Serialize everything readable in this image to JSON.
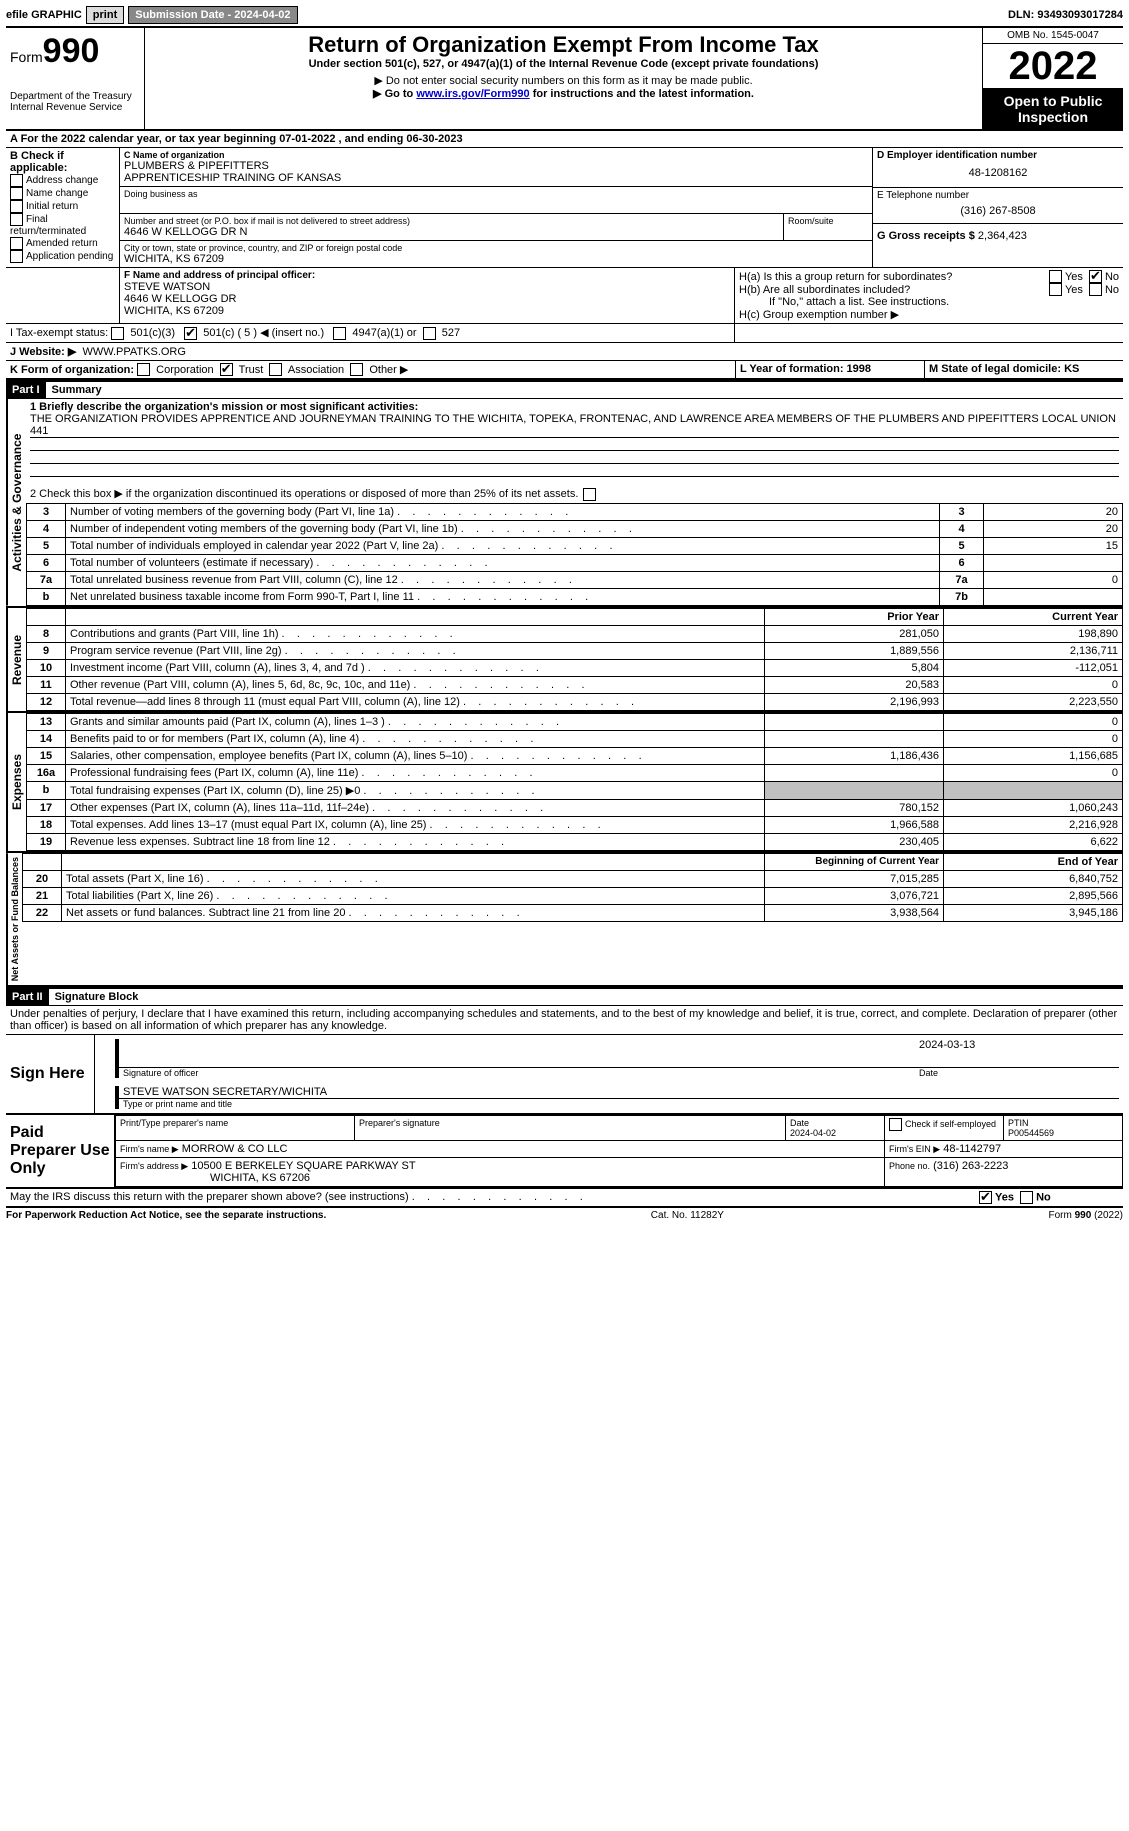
{
  "topbar": {
    "efile": "efile GRAPHIC",
    "print": "print",
    "subdate_label": "Submission Date - 2024-04-02",
    "dln_label": "DLN: 93493093017284"
  },
  "header": {
    "form_prefix": "Form",
    "form_number": "990",
    "dept": "Department of the Treasury",
    "irs": "Internal Revenue Service",
    "title": "Return of Organization Exempt From Income Tax",
    "subtitle": "Under section 501(c), 527, or 4947(a)(1) of the Internal Revenue Code (except private foundations)",
    "note1": "▶ Do not enter social security numbers on this form as it may be made public.",
    "note2_pre": "▶ Go to ",
    "note2_link": "www.irs.gov/Form990",
    "note2_post": " for instructions and the latest information.",
    "omb": "OMB No. 1545-0047",
    "year": "2022",
    "open": "Open to Public Inspection"
  },
  "lineA": "A For the 2022 calendar year, or tax year beginning 07-01-2022    , and ending 06-30-2023",
  "B": {
    "label": "B Check if applicable:",
    "opts": [
      "Address change",
      "Name change",
      "Initial return",
      "Final return/terminated",
      "Amended return",
      "Application pending"
    ]
  },
  "C": {
    "name_label": "C Name of organization",
    "name1": "PLUMBERS & PIPEFITTERS",
    "name2": "APPRENTICESHIP TRAINING OF KANSAS",
    "dba_label": "Doing business as",
    "addr_label": "Number and street (or P.O. box if mail is not delivered to street address)",
    "room_label": "Room/suite",
    "addr": "4646 W KELLOGG DR N",
    "city_label": "City or town, state or province, country, and ZIP or foreign postal code",
    "city": "WICHITA, KS  67209"
  },
  "D": {
    "label": "D Employer identification number",
    "value": "48-1208162"
  },
  "E": {
    "label": "E Telephone number",
    "value": "(316) 267-8508"
  },
  "G": {
    "label": "G Gross receipts $",
    "value": "2,364,423"
  },
  "F": {
    "label": "F Name and address of principal officer:",
    "name": "STEVE WATSON",
    "addr": "4646 W KELLOGG DR",
    "city": "WICHITA, KS  67209"
  },
  "H": {
    "a": "H(a)  Is this a group return for subordinates?",
    "b": "H(b)  Are all subordinates included?",
    "bnote": "If \"No,\" attach a list. See instructions.",
    "c": "H(c)  Group exemption number ▶",
    "yes": "Yes",
    "no": "No"
  },
  "I": {
    "label": "I   Tax-exempt status:",
    "o1": "501(c)(3)",
    "o2": "501(c) ( 5 ) ◀ (insert no.)",
    "o3": "4947(a)(1) or",
    "o4": "527"
  },
  "J": {
    "label": "J   Website: ▶",
    "value": "WWW.PPATKS.ORG"
  },
  "K": {
    "label": "K Form of organization:",
    "opts": [
      "Corporation",
      "Trust",
      "Association",
      "Other ▶"
    ]
  },
  "L": {
    "label": "L Year of formation: 1998"
  },
  "M": {
    "label": "M State of legal domicile: KS"
  },
  "part1": {
    "hdr": "Part I",
    "title": "Summary",
    "mission_label": "1   Briefly describe the organization's mission or most significant activities:",
    "mission": "THE ORGANIZATION PROVIDES APPRENTICE AND JOURNEYMAN TRAINING TO THE WICHITA, TOPEKA, FRONTENAC, AND LAWRENCE AREA MEMBERS OF THE PLUMBERS AND PIPEFITTERS LOCAL UNION 441",
    "line2": "2    Check this box ▶        if the organization discontinued its operations or disposed of more than 25% of its net assets.",
    "rows_ag": [
      {
        "n": "3",
        "t": "Number of voting members of the governing body (Part VI, line 1a)",
        "c": "3",
        "v": "20"
      },
      {
        "n": "4",
        "t": "Number of independent voting members of the governing body (Part VI, line 1b)",
        "c": "4",
        "v": "20"
      },
      {
        "n": "5",
        "t": "Total number of individuals employed in calendar year 2022 (Part V, line 2a)",
        "c": "5",
        "v": "15"
      },
      {
        "n": "6",
        "t": "Total number of volunteers (estimate if necessary)",
        "c": "6",
        "v": ""
      },
      {
        "n": "7a",
        "t": "Total unrelated business revenue from Part VIII, column (C), line 12",
        "c": "7a",
        "v": "0"
      },
      {
        "n": "b",
        "t": "Net unrelated business taxable income from Form 990-T, Part I, line 11",
        "c": "7b",
        "v": ""
      }
    ],
    "py": "Prior Year",
    "cy": "Current Year",
    "rev": [
      {
        "n": "8",
        "t": "Contributions and grants (Part VIII, line 1h)",
        "p": "281,050",
        "c": "198,890"
      },
      {
        "n": "9",
        "t": "Program service revenue (Part VIII, line 2g)",
        "p": "1,889,556",
        "c": "2,136,711"
      },
      {
        "n": "10",
        "t": "Investment income (Part VIII, column (A), lines 3, 4, and 7d )",
        "p": "5,804",
        "c": "-112,051"
      },
      {
        "n": "11",
        "t": "Other revenue (Part VIII, column (A), lines 5, 6d, 8c, 9c, 10c, and 11e)",
        "p": "20,583",
        "c": "0"
      },
      {
        "n": "12",
        "t": "Total revenue—add lines 8 through 11 (must equal Part VIII, column (A), line 12)",
        "p": "2,196,993",
        "c": "2,223,550"
      }
    ],
    "exp": [
      {
        "n": "13",
        "t": "Grants and similar amounts paid (Part IX, column (A), lines 1–3 )",
        "p": "",
        "c": "0"
      },
      {
        "n": "14",
        "t": "Benefits paid to or for members (Part IX, column (A), line 4)",
        "p": "",
        "c": "0"
      },
      {
        "n": "15",
        "t": "Salaries, other compensation, employee benefits (Part IX, column (A), lines 5–10)",
        "p": "1,186,436",
        "c": "1,156,685"
      },
      {
        "n": "16a",
        "t": "Professional fundraising fees (Part IX, column (A), line 11e)",
        "p": "",
        "c": "0"
      },
      {
        "n": "b",
        "t": "Total fundraising expenses (Part IX, column (D), line 25) ▶0",
        "p": "__shade__",
        "c": "__shade__"
      },
      {
        "n": "17",
        "t": "Other expenses (Part IX, column (A), lines 11a–11d, 11f–24e)",
        "p": "780,152",
        "c": "1,060,243"
      },
      {
        "n": "18",
        "t": "Total expenses. Add lines 13–17 (must equal Part IX, column (A), line 25)",
        "p": "1,966,588",
        "c": "2,216,928"
      },
      {
        "n": "19",
        "t": "Revenue less expenses. Subtract line 18 from line 12",
        "p": "230,405",
        "c": "6,622"
      }
    ],
    "bcy": "Beginning of Current Year",
    "ecy": "End of Year",
    "net": [
      {
        "n": "20",
        "t": "Total assets (Part X, line 16)",
        "p": "7,015,285",
        "c": "6,840,752"
      },
      {
        "n": "21",
        "t": "Total liabilities (Part X, line 26)",
        "p": "3,076,721",
        "c": "2,895,566"
      },
      {
        "n": "22",
        "t": "Net assets or fund balances. Subtract line 21 from line 20",
        "p": "3,938,564",
        "c": "3,945,186"
      }
    ],
    "vlab_ag": "Activities & Governance",
    "vlab_rev": "Revenue",
    "vlab_exp": "Expenses",
    "vlab_net": "Net Assets or Fund Balances"
  },
  "part2": {
    "hdr": "Part II",
    "title": "Signature Block",
    "decl": "Under penalties of perjury, I declare that I have examined this return, including accompanying schedules and statements, and to the best of my knowledge and belief, it is true, correct, and complete. Declaration of preparer (other than officer) is based on all information of which preparer has any knowledge.",
    "sign_here": "Sign Here",
    "sig_officer": "Signature of officer",
    "sig_date": "2024-03-13",
    "date_label": "Date",
    "typed_name": "STEVE WATSON  SECRETARY/WICHITA",
    "typed_label": "Type or print name and title",
    "paid": "Paid Preparer Use Only",
    "prep_name_label": "Print/Type preparer's name",
    "prep_sig_label": "Preparer's signature",
    "prep_date_label": "Date",
    "prep_date": "2024-04-02",
    "check_self": "Check         if self-employed",
    "ptin_label": "PTIN",
    "ptin": "P00544569",
    "firm_name_label": "Firm's name    ▶",
    "firm_name": "MORROW & CO LLC",
    "firm_ein_label": "Firm's EIN ▶",
    "firm_ein": "48-1142797",
    "firm_addr_label": "Firm's address ▶",
    "firm_addr": "10500 E BERKELEY SQUARE PARKWAY ST",
    "firm_city": "WICHITA, KS  67206",
    "firm_phone_label": "Phone no.",
    "firm_phone": "(316) 263-2223",
    "discuss": "May the IRS discuss this return with the preparer shown above? (see instructions)"
  },
  "footer": {
    "pra": "For Paperwork Reduction Act Notice, see the separate instructions.",
    "cat": "Cat. No. 11282Y",
    "form": "Form 990 (2022)"
  }
}
